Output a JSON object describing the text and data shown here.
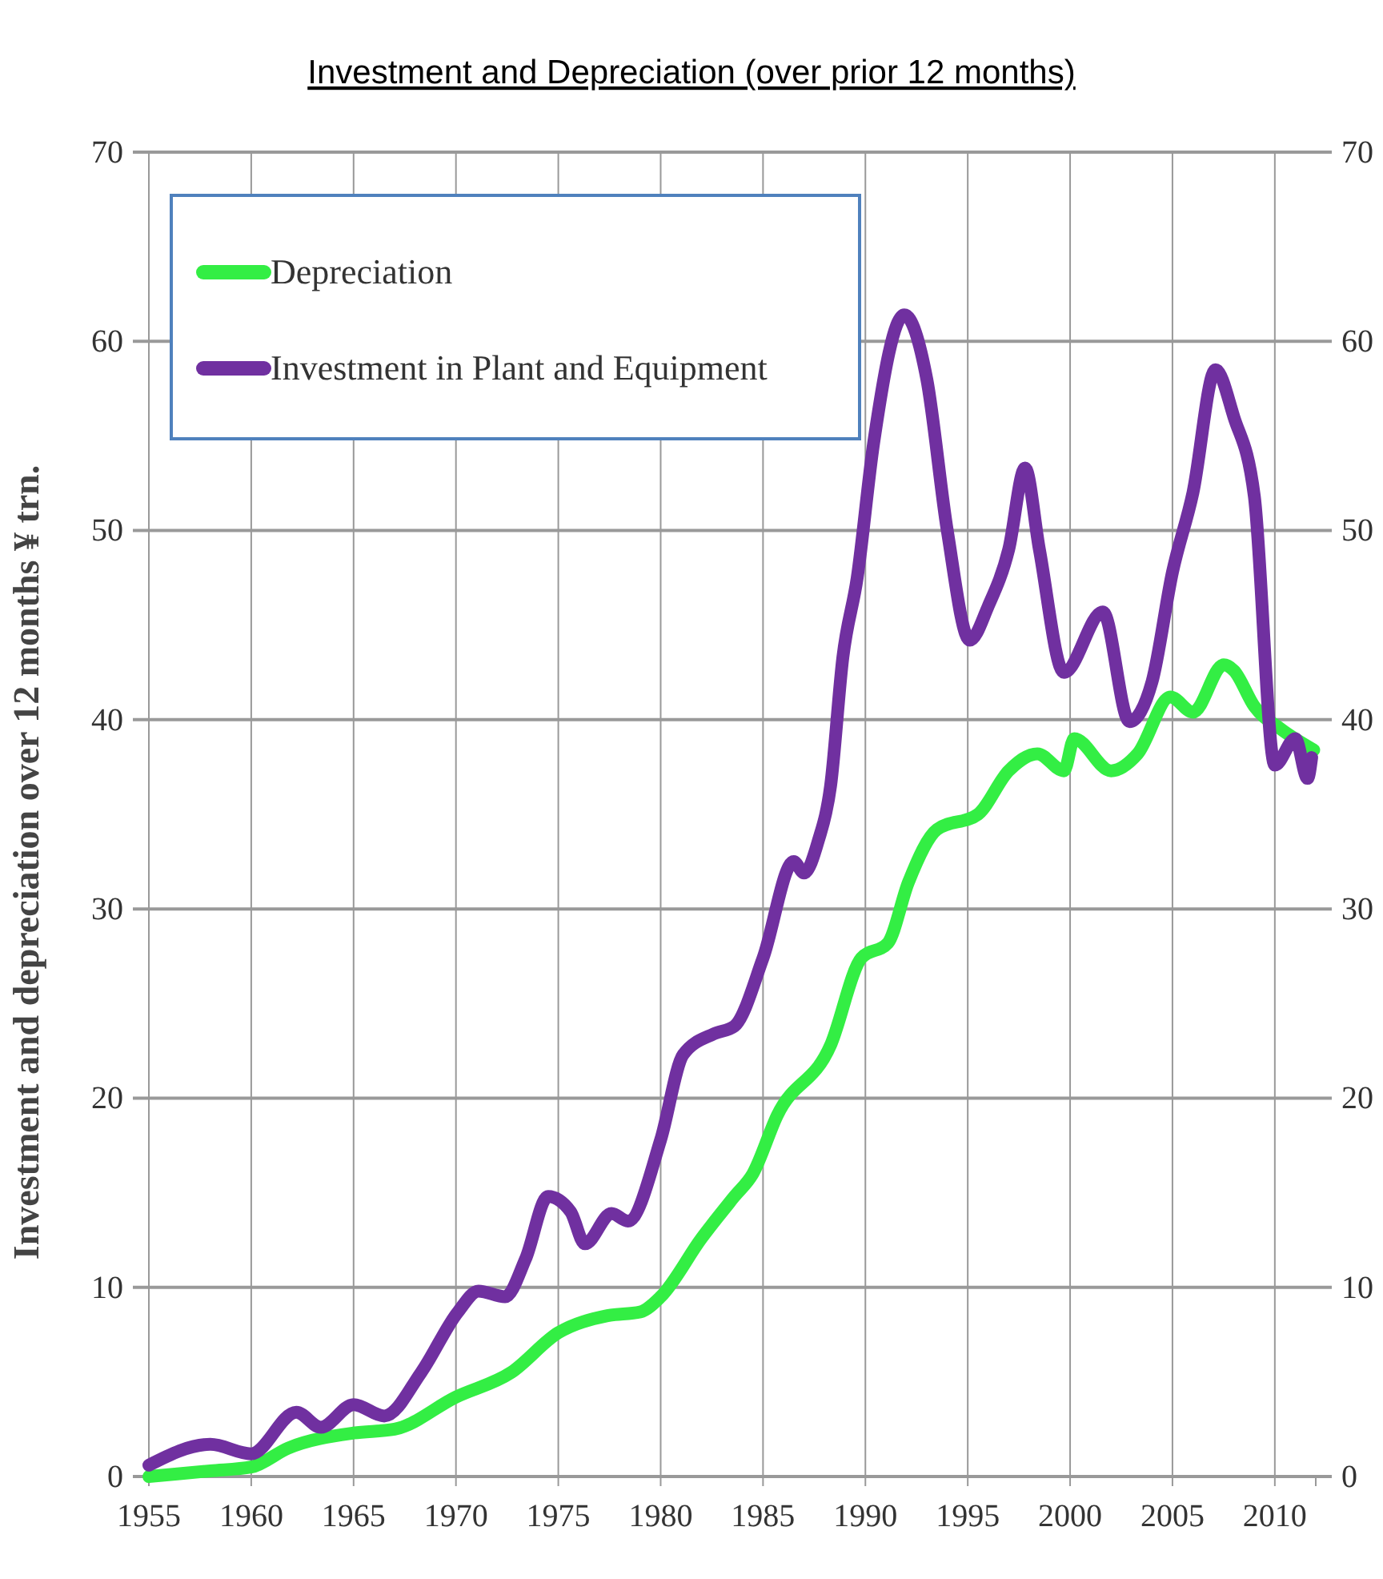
{
  "chart_data": {
    "type": "line",
    "title": "Investment and Depreciation (over prior 12 months)",
    "ylabel": "Investment and depreciation over 12 months ¥ trn.",
    "xlim": [
      1955,
      2012
    ],
    "xticks": [
      1955,
      1960,
      1965,
      1970,
      1975,
      1980,
      1985,
      1990,
      1995,
      2000,
      2005,
      2010
    ],
    "ylim": [
      0,
      70
    ],
    "yticks": [
      0,
      10,
      20,
      30,
      40,
      50,
      60,
      70
    ],
    "y2lim": [
      0,
      70
    ],
    "y2ticks": [
      0,
      10,
      20,
      30,
      40,
      50,
      60,
      70
    ],
    "grid": true,
    "legend": "top left",
    "line_style": "solid",
    "series": [
      {
        "name": "Depreciation",
        "color": "#33ee44",
        "x": [
          1955,
          1958,
          1960,
          1961.8,
          1965,
          1967,
          1970,
          1972.7,
          1975,
          1977.4,
          1979,
          1980,
          1982,
          1983.6,
          1984.5,
          1985.7,
          1988.3,
          1989.8,
          1991.1,
          1992.1,
          1993.5,
          1995.5,
          1997,
          1998.4,
          1999.7,
          2000.2,
          2002,
          2003.3,
          2004.9,
          2006,
          2007.5,
          2008,
          2009,
          2010.3,
          2011.9
        ],
        "values": [
          0,
          0.3,
          0.5,
          1.5,
          2.3,
          2.5,
          4.2,
          5.5,
          7.6,
          8.5,
          8.7,
          9.5,
          12.6,
          14.8,
          16,
          19.1,
          22.8,
          27.4,
          28.2,
          31.4,
          34.2,
          35,
          37.3,
          38.2,
          37.3,
          39,
          37.3,
          38.2,
          41.2,
          40.4,
          42.9,
          42.6,
          40.7,
          39.5,
          38.4
        ]
      },
      {
        "name": "Investment in Plant and Equipment",
        "color": "#7030a0",
        "x": [
          1955,
          1958,
          1960,
          1962.2,
          1963.4,
          1965,
          1966.5,
          1968.3,
          1970.1,
          1971.1,
          1972.4,
          1973.4,
          1974.5,
          1975.6,
          1976.3,
          1977.6,
          1978.4,
          1980,
          1981.1,
          1982.6,
          1983.6,
          1985,
          1986.5,
          1987,
          1987.7,
          1988.3,
          1988.9,
          1989.6,
          1990.4,
          1991.9,
          1993,
          1994,
          1995.1,
          1996,
          1997,
          1997.8,
          1998.5,
          1999.7,
          2001.6,
          2002.9,
          2004,
          2005,
          2006,
          2007.1,
          2008,
          2009,
          2010,
          2011,
          2011.6,
          2011.8
        ],
        "values": [
          0.6,
          1.7,
          1.2,
          3.4,
          2.6,
          3.8,
          3.2,
          5.5,
          8.7,
          9.8,
          9.5,
          11.5,
          14.8,
          14,
          12.3,
          13.9,
          13.5,
          17.8,
          22.3,
          23.4,
          23.8,
          27.4,
          32.5,
          31.9,
          33.6,
          36.5,
          43.3,
          47.5,
          54.6,
          61.4,
          58,
          50,
          44.2,
          46,
          49,
          53.3,
          49,
          42.5,
          45.7,
          39.9,
          42,
          47.8,
          52,
          58.5,
          56,
          51.8,
          37.6,
          39,
          36.9,
          38
        ]
      }
    ]
  }
}
